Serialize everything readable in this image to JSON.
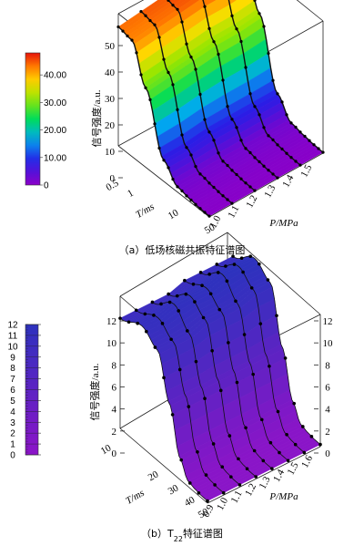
{
  "chart_data": [
    {
      "type": "surface3d",
      "panel_caption": "（a）低场核磁共振特征谱图",
      "zlabel": "信号强度/a.u.",
      "xlabel": "P/MPa",
      "ylabel": "T/ms",
      "x_ticks": [
        "1.0",
        "1.1",
        "1.2",
        "1.3",
        "1.4",
        "1.5"
      ],
      "y_ticks": [
        "0.5",
        "1",
        "10",
        "50"
      ],
      "z_ticks": [
        "0",
        "10",
        "20",
        "30",
        "40",
        "50"
      ],
      "zlim": [
        0,
        50
      ],
      "colorbar": {
        "ticks": [
          "0",
          "10.00",
          "20.00",
          "30.00",
          "40.00"
        ],
        "range": [
          0,
          48
        ]
      },
      "series": [
        {
          "P": 1.0,
          "T_ms": [
            0.5,
            1,
            2,
            5,
            10,
            20,
            30,
            50
          ],
          "signal": [
            45,
            44,
            30,
            8,
            2,
            1,
            0.5,
            0.3
          ]
        },
        {
          "P": 1.1,
          "T_ms": [
            0.5,
            1,
            2,
            5,
            10,
            20,
            30,
            50
          ],
          "signal": [
            46,
            45,
            31,
            8,
            2,
            1,
            0.5,
            0.3
          ]
        },
        {
          "P": 1.2,
          "T_ms": [
            0.5,
            1,
            2,
            5,
            10,
            20,
            30,
            50
          ],
          "signal": [
            47,
            46,
            32,
            9,
            2,
            1,
            0.5,
            0.3
          ]
        },
        {
          "P": 1.3,
          "T_ms": [
            0.5,
            1,
            2,
            5,
            10,
            20,
            30,
            50
          ],
          "signal": [
            48,
            47,
            33,
            9,
            2,
            1,
            0.5,
            0.3
          ]
        },
        {
          "P": 1.4,
          "T_ms": [
            0.5,
            1,
            2,
            5,
            10,
            20,
            30,
            50
          ],
          "signal": [
            48,
            47,
            33,
            9,
            2,
            1,
            0.5,
            0.3
          ]
        },
        {
          "P": 1.5,
          "T_ms": [
            0.5,
            1,
            2,
            5,
            10,
            20,
            30,
            50
          ],
          "signal": [
            49,
            48,
            34,
            9,
            2,
            1,
            0.5,
            0.3
          ]
        }
      ]
    },
    {
      "type": "surface3d",
      "panel_caption": "（b）T",
      "panel_caption_sub": "22",
      "panel_caption_tail": "特征谱图",
      "zlabel": "信号强度/a.u.",
      "xlabel": "P/MPa",
      "ylabel": "T/ms",
      "x_ticks": [
        "0.9",
        "1.0",
        "1.1",
        "1.2",
        "1.3",
        "1.4",
        "1.5",
        "1.6"
      ],
      "y_ticks": [
        "10",
        "20",
        "30",
        "40",
        "50"
      ],
      "z_ticks": [
        "0",
        "2",
        "4",
        "6",
        "8",
        "10",
        "12"
      ],
      "zlim": [
        0,
        12
      ],
      "colorbar": {
        "ticks": [
          "0",
          "1",
          "2",
          "3",
          "4",
          "5",
          "6",
          "7",
          "8",
          "9",
          "10",
          "11",
          "12"
        ],
        "range": [
          0,
          12
        ]
      },
      "series": [
        {
          "P": 0.9,
          "T_ms": [
            10,
            15,
            20,
            25,
            30,
            35,
            40,
            45,
            50
          ],
          "signal": [
            10,
            11,
            10,
            6,
            2,
            0.5,
            0.3,
            0.2,
            0.2
          ]
        },
        {
          "P": 1.0,
          "T_ms": [
            10,
            15,
            20,
            25,
            30,
            35,
            40,
            45,
            50
          ],
          "signal": [
            10,
            11,
            10,
            6,
            2,
            0.5,
            0.3,
            0.2,
            0.2
          ]
        },
        {
          "P": 1.1,
          "T_ms": [
            10,
            15,
            20,
            25,
            30,
            35,
            40,
            45,
            50
          ],
          "signal": [
            10,
            11.5,
            10,
            6,
            2,
            0.5,
            0.3,
            0.2,
            0.2
          ]
        },
        {
          "P": 1.2,
          "T_ms": [
            10,
            15,
            20,
            25,
            30,
            35,
            40,
            45,
            50
          ],
          "signal": [
            10,
            11.5,
            10.5,
            6,
            2,
            0.5,
            0.3,
            0.2,
            0.2
          ]
        },
        {
          "P": 1.3,
          "T_ms": [
            10,
            15,
            20,
            25,
            30,
            35,
            40,
            45,
            50
          ],
          "signal": [
            10.5,
            11.5,
            10.5,
            6,
            2,
            0.5,
            0.3,
            0.2,
            0.2
          ]
        },
        {
          "P": 1.4,
          "T_ms": [
            10,
            15,
            20,
            25,
            30,
            35,
            40,
            45,
            50
          ],
          "signal": [
            10.5,
            12,
            10.5,
            6,
            2,
            0.5,
            0.3,
            0.2,
            0.2
          ]
        },
        {
          "P": 1.5,
          "T_ms": [
            10,
            15,
            20,
            25,
            30,
            35,
            40,
            45,
            50
          ],
          "signal": [
            10.5,
            12,
            11,
            6,
            2,
            0.5,
            0.3,
            0.2,
            0.2
          ]
        },
        {
          "P": 1.6,
          "T_ms": [
            10,
            15,
            20,
            25,
            30,
            35,
            40,
            45,
            50
          ],
          "signal": [
            10.5,
            12,
            11,
            6,
            2,
            0.5,
            0.3,
            0.2,
            0.2
          ]
        }
      ]
    }
  ]
}
